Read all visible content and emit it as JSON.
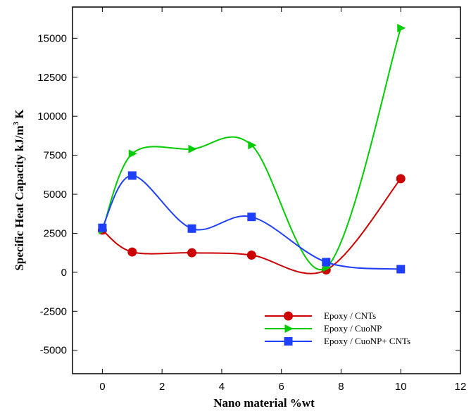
{
  "chart_data": {
    "type": "line",
    "xlabel": "Nano material %wt",
    "ylabel": "Specific Heat Capacity kJ/m",
    "ylabel_sup": "3",
    "ylabel_suffix": " K",
    "xlim": [
      -1,
      12
    ],
    "ylim": [
      -6500,
      17000
    ],
    "x_ticks": [
      0,
      2,
      4,
      6,
      8,
      10,
      12
    ],
    "y_ticks": [
      -5000,
      -2500,
      0,
      2500,
      5000,
      7500,
      10000,
      12500,
      15000
    ],
    "grid": false,
    "legend_position": "bottom-right",
    "series": [
      {
        "name": "Epoxy / CNTs",
        "color": "#cc0000",
        "marker": "circle",
        "x": [
          0,
          1,
          3,
          5,
          7.5,
          10
        ],
        "y": [
          2700,
          1300,
          1250,
          1100,
          150,
          6000
        ]
      },
      {
        "name": "Epoxy / CuoNP",
        "color": "#00cc00",
        "marker": "triangle-right",
        "x": [
          0,
          1,
          3,
          5,
          7.5,
          10
        ],
        "y": [
          2700,
          7600,
          7900,
          8150,
          300,
          15650
        ]
      },
      {
        "name": "Epoxy / CuoNP+ CNTs",
        "color": "#1f3fff",
        "marker": "square",
        "x": [
          0,
          1,
          3,
          5,
          7.5,
          10
        ],
        "y": [
          2850,
          6200,
          2800,
          3550,
          650,
          200
        ]
      }
    ]
  }
}
